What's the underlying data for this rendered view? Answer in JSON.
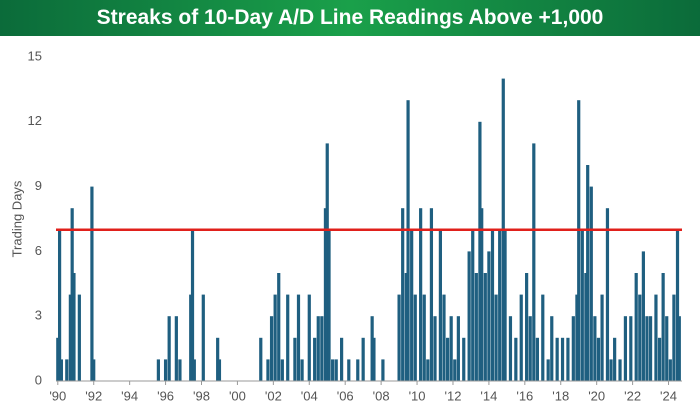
{
  "chart_data": {
    "type": "bar",
    "title": "Streaks of 10-Day A/D Line Readings Above +1,000",
    "y_label": "Trading Days",
    "color": "#1f5f80",
    "reference_line": {
      "value": 7,
      "color": "#e0201b"
    },
    "xlim": [
      1989.9,
      2024.75
    ],
    "xticks": [
      {
        "value": 1990,
        "label": "'90"
      },
      {
        "value": 1992,
        "label": "'92"
      },
      {
        "value": 1994,
        "label": "'94"
      },
      {
        "value": 1996,
        "label": "'96"
      },
      {
        "value": 1998,
        "label": "'98"
      },
      {
        "value": 2000,
        "label": "'00"
      },
      {
        "value": 2002,
        "label": "'02"
      },
      {
        "value": 2004,
        "label": "'04"
      },
      {
        "value": 2006,
        "label": "'06"
      },
      {
        "value": 2008,
        "label": "'08"
      },
      {
        "value": 2010,
        "label": "'10"
      },
      {
        "value": 2012,
        "label": "'12"
      },
      {
        "value": 2014,
        "label": "'14"
      },
      {
        "value": 2016,
        "label": "'16"
      },
      {
        "value": 2018,
        "label": "'18"
      },
      {
        "value": 2020,
        "label": "'20"
      },
      {
        "value": 2022,
        "label": "'22"
      },
      {
        "value": 2024,
        "label": "'24"
      }
    ],
    "ylim": [
      0,
      15
    ],
    "yticks": [
      0,
      3,
      6,
      9,
      12,
      15
    ],
    "x": [
      1990.0,
      1990.1,
      1990.2,
      1990.5,
      1990.7,
      1990.8,
      1990.9,
      1991.2,
      1991.9,
      1992.0,
      1995.6,
      1996.0,
      1996.2,
      1996.6,
      1996.8,
      1997.4,
      1997.5,
      1997.6,
      1998.1,
      1998.9,
      1999.0,
      2001.3,
      2001.7,
      2001.9,
      2002.1,
      2002.3,
      2002.5,
      2002.8,
      2003.2,
      2003.4,
      2003.6,
      2004.0,
      2004.3,
      2004.5,
      2004.7,
      2004.9,
      2005.0,
      2005.1,
      2005.3,
      2005.5,
      2005.8,
      2006.2,
      2006.7,
      2007.0,
      2007.5,
      2007.6,
      2008.1,
      2009.0,
      2009.2,
      2009.4,
      2009.5,
      2009.7,
      2009.9,
      2010.2,
      2010.4,
      2010.6,
      2010.8,
      2011.0,
      2011.3,
      2011.5,
      2011.7,
      2011.9,
      2012.1,
      2012.3,
      2012.6,
      2012.9,
      2013.1,
      2013.3,
      2013.5,
      2013.6,
      2013.8,
      2014.0,
      2014.2,
      2014.4,
      2014.6,
      2014.8,
      2014.9,
      2015.2,
      2015.5,
      2015.8,
      2016.1,
      2016.3,
      2016.5,
      2016.7,
      2017.0,
      2017.3,
      2017.5,
      2017.8,
      2018.1,
      2018.4,
      2018.7,
      2018.9,
      2019.0,
      2019.2,
      2019.4,
      2019.5,
      2019.7,
      2019.9,
      2020.1,
      2020.3,
      2020.6,
      2020.8,
      2021.0,
      2021.3,
      2021.6,
      2021.9,
      2022.2,
      2022.4,
      2022.6,
      2022.8,
      2023.0,
      2023.3,
      2023.5,
      2023.7,
      2023.9,
      2024.1,
      2024.3,
      2024.5,
      2024.6
    ],
    "values": [
      2,
      7,
      1,
      1,
      4,
      8,
      5,
      4,
      9,
      1,
      1,
      1,
      3,
      3,
      1,
      4,
      7,
      1,
      4,
      2,
      1,
      2,
      1,
      3,
      4,
      5,
      1,
      4,
      2,
      4,
      1,
      4,
      2,
      3,
      3,
      8,
      11,
      7,
      1,
      1,
      2,
      1,
      1,
      2,
      3,
      2,
      1,
      4,
      8,
      5,
      13,
      7,
      4,
      8,
      4,
      1,
      8,
      3,
      7,
      4,
      2,
      3,
      1,
      3,
      2,
      6,
      7,
      5,
      12,
      8,
      5,
      6,
      7,
      4,
      7,
      14,
      7,
      3,
      2,
      4,
      5,
      3,
      11,
      2,
      4,
      1,
      3,
      2,
      2,
      2,
      3,
      4,
      13,
      7,
      5,
      10,
      9,
      3,
      2,
      4,
      8,
      1,
      2,
      1,
      3,
      3,
      5,
      4,
      6,
      3,
      3,
      4,
      2,
      5,
      3,
      1,
      4,
      7,
      3
    ]
  }
}
